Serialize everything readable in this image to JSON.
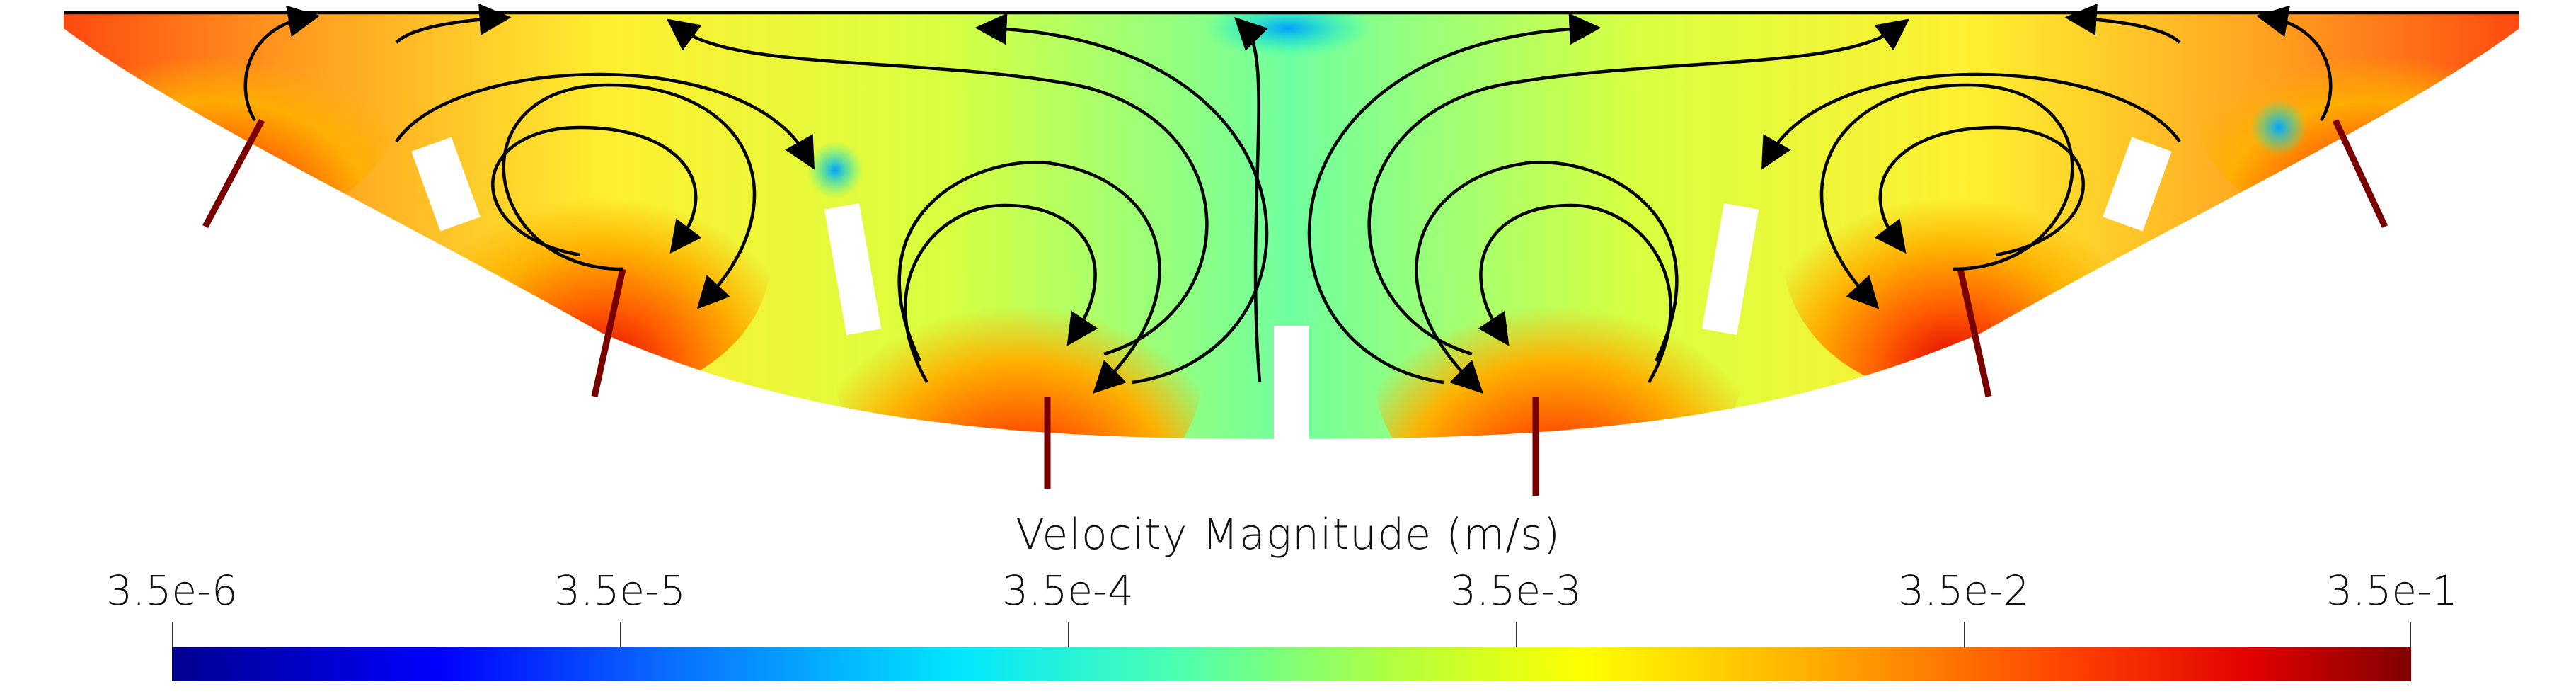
{
  "figure": {
    "description_visible_text": "",
    "colors": {
      "low": "#00008f",
      "mid_low": "#00e5ff",
      "mid": "#b6ff3a",
      "mid_high": "#ffff00",
      "high": "#ff4000",
      "max": "#800000",
      "streamline": "#000000"
    }
  },
  "colorbar": {
    "title": "Velocity Magnitude (m/s)",
    "ticks": [
      {
        "label": "3.5e-6",
        "value": 3.5e-06
      },
      {
        "label": "3.5e-5",
        "value": 3.5e-05
      },
      {
        "label": "3.5e-4",
        "value": 0.00035
      },
      {
        "label": "3.5e-3",
        "value": 0.0035
      },
      {
        "label": "3.5e-2",
        "value": 0.035
      },
      {
        "label": "3.5e-1",
        "value": 0.35
      }
    ],
    "scale": "log"
  }
}
